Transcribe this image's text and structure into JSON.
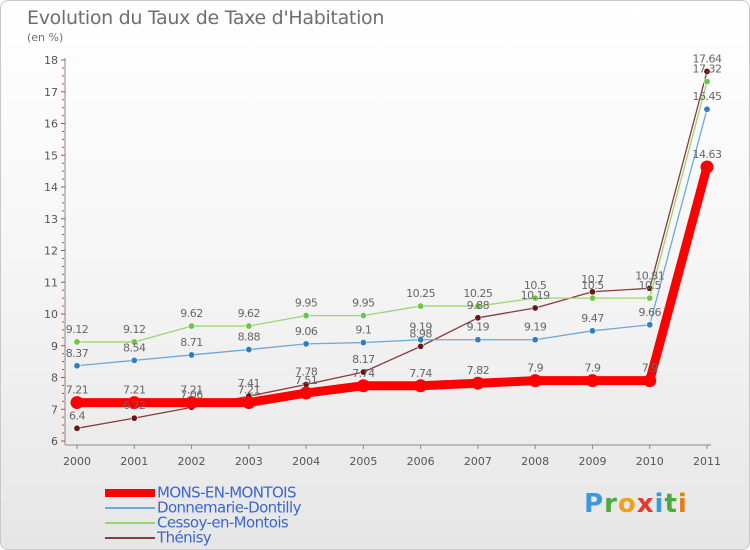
{
  "header": {
    "title": "Evolution du Taux de Taxe d'Habitation",
    "unit": "(en %)"
  },
  "logo": {
    "text": "Proxiti",
    "letters": [
      {
        "ch": "P",
        "color": "#3a9ad9"
      },
      {
        "ch": "r",
        "color": "#4cab3c"
      },
      {
        "ch": "o",
        "color": "#f0a020"
      },
      {
        "ch": "x",
        "color": "#e23b2a"
      },
      {
        "ch": "i",
        "color": "#3a9ad9"
      },
      {
        "ch": "t",
        "color": "#4cab3c"
      },
      {
        "ch": "i",
        "color": "#e87a1e"
      }
    ]
  },
  "chart_data": {
    "type": "line",
    "title": "Evolution du Taux de Taxe d'Habitation",
    "xlabel": "",
    "ylabel": "(en %)",
    "x": [
      "2000",
      "2001",
      "2002",
      "2003",
      "2004",
      "2005",
      "2006",
      "2007",
      "2008",
      "2009",
      "2010",
      "2011"
    ],
    "ylim": [
      6,
      18
    ],
    "yticks": [
      6,
      7,
      8,
      9,
      10,
      11,
      12,
      13,
      14,
      15,
      16,
      17,
      18
    ],
    "grid": false,
    "legend_position": "bottom-left",
    "series": [
      {
        "name": "MONS-EN-MONTOIS",
        "color": "#ff0000",
        "marker_color": "#ff0000",
        "label_color": "#666666",
        "bold": true,
        "values": [
          7.21,
          7.21,
          7.21,
          7.21,
          7.51,
          7.74,
          7.74,
          7.82,
          7.9,
          7.9,
          7.9,
          14.63
        ],
        "labels": [
          "7.21",
          "7.21",
          "7.21",
          "7.21",
          "7.51",
          "7.74",
          "7.74",
          "7.82",
          "7.9",
          "7.9",
          "7.9",
          "14.63"
        ]
      },
      {
        "name": "Donnemarie-Dontilly",
        "color": "#6fa8d8",
        "marker_color": "#2e7dc8",
        "label_color": "#666666",
        "bold": false,
        "values": [
          8.37,
          8.54,
          8.71,
          8.88,
          9.06,
          9.1,
          9.19,
          9.19,
          9.19,
          9.47,
          9.66,
          16.45
        ],
        "labels": [
          "8.37",
          "8.54",
          "8.71",
          "8.88",
          "9.06",
          "9.1",
          "9.19",
          "9.19",
          "9.19",
          "9.47",
          "9.66",
          "16.45"
        ]
      },
      {
        "name": "Cessoy-en-Montois",
        "color": "#9ad66e",
        "marker_color": "#6cc644",
        "label_color": "#666666",
        "bold": false,
        "values": [
          9.12,
          9.12,
          9.62,
          9.62,
          9.95,
          9.95,
          10.25,
          10.25,
          10.5,
          10.5,
          10.5,
          17.32
        ],
        "labels": [
          "9.12",
          "9.12",
          "9.62",
          "9.62",
          "9.95",
          "9.95",
          "10.25",
          "10.25",
          "10.5",
          "10.5",
          "10.5",
          "17.32"
        ]
      },
      {
        "name": "Thénisy",
        "color": "#8a3a3a",
        "marker_color": "#6a1616",
        "label_color": "#666666",
        "bold": false,
        "values": [
          6.4,
          6.72,
          7.06,
          7.41,
          7.78,
          8.17,
          8.98,
          9.88,
          10.19,
          10.7,
          10.81,
          17.64
        ],
        "labels": [
          "6.4",
          "6.72",
          "7.06",
          "7.41",
          "7.78",
          "8.17",
          "8.98",
          "9.88",
          "10.19",
          "10.7",
          "10.81",
          "17.64"
        ]
      }
    ]
  }
}
